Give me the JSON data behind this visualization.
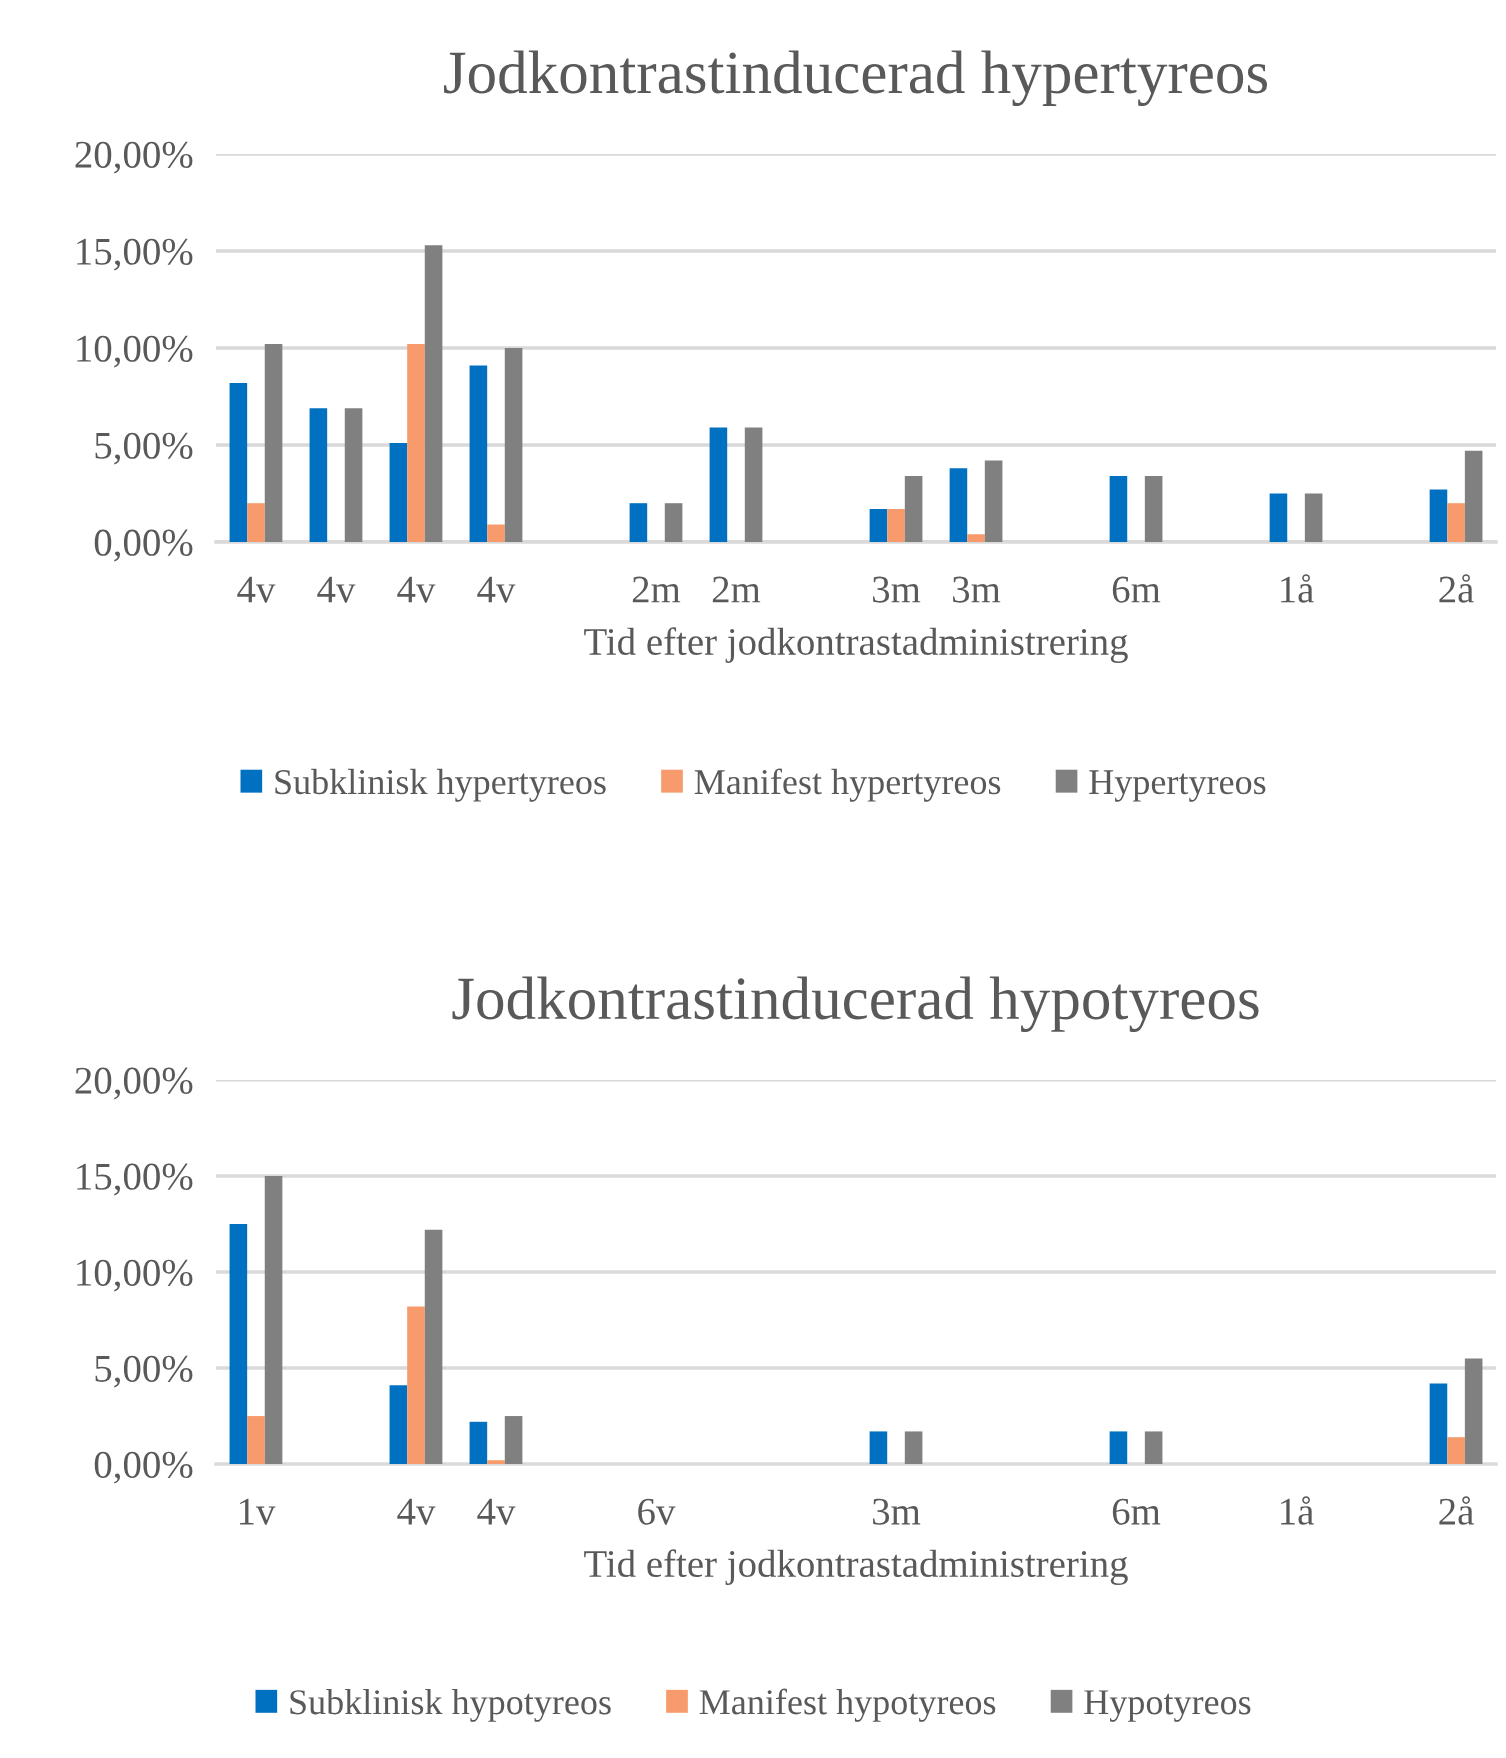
{
  "chart_data": [
    {
      "type": "bar",
      "title": "Jodkontrastinducerad hypertyreos",
      "xlabel": "Tid efter jodkontrastadministrering",
      "categories": [
        "4v",
        "4v",
        "4v",
        "4v",
        null,
        "2m",
        "2m",
        null,
        "3m",
        "3m",
        null,
        "6m",
        null,
        "1å",
        null,
        "2å"
      ],
      "series": [
        {
          "name": "Subklinisk hypertyreos",
          "color": "#0070c0",
          "values": [
            8.2,
            6.9,
            5.1,
            9.1,
            null,
            2.0,
            5.9,
            null,
            1.7,
            3.8,
            null,
            3.4,
            null,
            2.5,
            null,
            2.7
          ]
        },
        {
          "name": "Manifest hypertyreos",
          "color": "#f79b6c",
          "values": [
            2.0,
            null,
            10.2,
            0.9,
            null,
            null,
            null,
            null,
            1.7,
            0.4,
            null,
            null,
            null,
            null,
            null,
            2.0
          ]
        },
        {
          "name": "Hypertyreos",
          "color": "#808080",
          "values": [
            10.2,
            6.9,
            15.3,
            10.0,
            null,
            2.0,
            5.9,
            null,
            3.4,
            4.2,
            null,
            3.4,
            null,
            2.5,
            null,
            4.7
          ]
        }
      ],
      "ylim": [
        0,
        20
      ],
      "yticks": [
        {
          "value": 0,
          "label": "0,00%"
        },
        {
          "value": 5,
          "label": "5,00%"
        },
        {
          "value": 10,
          "label": "10,00%"
        },
        {
          "value": 15,
          "label": "15,00%"
        },
        {
          "value": 20,
          "label": "20,00%"
        }
      ],
      "grid": "y",
      "legend": "bottom"
    },
    {
      "type": "bar",
      "title": "Jodkontrastinducerad hypotyreos",
      "xlabel": "Tid efter jodkontrastadministrering",
      "categories": [
        "1v",
        null,
        "4v",
        "4v",
        null,
        "6v",
        null,
        null,
        "3m",
        null,
        null,
        "6m",
        null,
        "1å",
        null,
        "2å"
      ],
      "series": [
        {
          "name": "Subklinisk hypotyreos",
          "color": "#0070c0",
          "values": [
            12.5,
            null,
            4.1,
            2.2,
            null,
            null,
            null,
            null,
            1.7,
            null,
            null,
            1.7,
            null,
            null,
            null,
            4.2
          ]
        },
        {
          "name": "Manifest hypotyreos",
          "color": "#f79b6c",
          "values": [
            2.5,
            null,
            8.2,
            0.2,
            null,
            null,
            null,
            null,
            null,
            null,
            null,
            null,
            null,
            null,
            null,
            1.4
          ]
        },
        {
          "name": "Hypotyreos",
          "color": "#808080",
          "values": [
            15.0,
            null,
            12.2,
            2.5,
            null,
            null,
            null,
            null,
            1.7,
            null,
            null,
            1.7,
            null,
            null,
            null,
            5.5
          ]
        }
      ],
      "ylim": [
        0,
        20
      ],
      "yticks": [
        {
          "value": 0,
          "label": "0,00%"
        },
        {
          "value": 5,
          "label": "5,00%"
        },
        {
          "value": 10,
          "label": "10,00%"
        },
        {
          "value": 15,
          "label": "15,00%"
        },
        {
          "value": 20,
          "label": "20,00%"
        }
      ],
      "grid": "y",
      "legend": "bottom"
    }
  ]
}
